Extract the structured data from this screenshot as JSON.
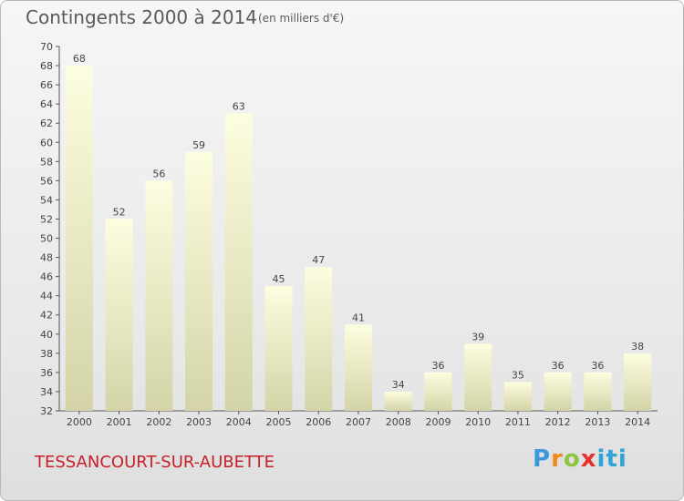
{
  "header": {
    "title": "Contingents 2000 à 2014",
    "subtitle": "(en milliers d'€)"
  },
  "footer": {
    "commune": "TESSANCOURT-SUR-AUBETTE",
    "brand": "Proxiti"
  },
  "colors": {
    "bar_top": "#fdfde0",
    "bar_bottom": "#d4d4a8",
    "text": "#444444",
    "commune": "#c8202a"
  },
  "chart_data": {
    "type": "bar",
    "categories": [
      "2000",
      "2001",
      "2002",
      "2003",
      "2004",
      "2005",
      "2006",
      "2007",
      "2008",
      "2009",
      "2010",
      "2011",
      "2012",
      "2013",
      "2014"
    ],
    "values": [
      68,
      52,
      56,
      59,
      63,
      45,
      47,
      41,
      34,
      36,
      39,
      35,
      36,
      36,
      38
    ],
    "ylim": [
      32,
      70
    ],
    "ytick_step": 2,
    "grid": false,
    "legend": "none"
  }
}
